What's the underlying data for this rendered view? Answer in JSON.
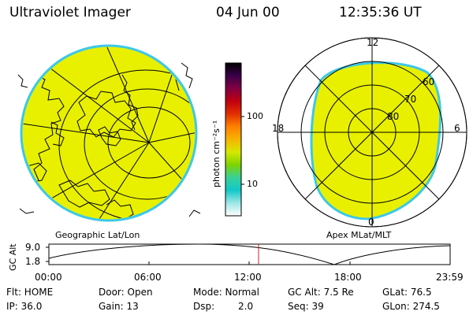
{
  "header": {
    "title": "Ultraviolet Imager",
    "date": "04 Jun 00",
    "time": "12:35:36 UT"
  },
  "geo_panel": {
    "label": "Geographic Lat/Lon",
    "fill_color": "#e8f000",
    "edge_color": "#3cc8e8"
  },
  "colorbar": {
    "unit_label": "photon cm⁻²s⁻¹",
    "tick_labels": [
      "100",
      "10"
    ],
    "stops": [
      "#ffffff",
      "#9ee6e6",
      "#12c8c8",
      "#38d098",
      "#7ed300",
      "#d6e800",
      "#f6b400",
      "#ff8000",
      "#e03000",
      "#c00010",
      "#800040",
      "#3a0048",
      "#000000"
    ],
    "scale": "log"
  },
  "polar_panel": {
    "label": "Apex MLat/MLT",
    "mlt_labels": {
      "top": "12",
      "right": "6",
      "bottom": "0",
      "left": "18"
    },
    "lat_labels": [
      "60",
      "70",
      "80"
    ],
    "fill_color": "#e8f000",
    "edge_color": "#3cc8e8"
  },
  "altitude_plot": {
    "ylabel": "GC Alt",
    "ytick_top": "9.0",
    "ytick_bottom": "1.8",
    "x_ticks": [
      "00:00",
      "06:00",
      "12:00",
      "18:00",
      "23:59"
    ],
    "marker_time": "12:35",
    "marker_color": "#d02020"
  },
  "status": {
    "flt": "Flt: HOME",
    "door": "Door: Open",
    "mode": "Mode: Normal",
    "gc_alt": "GC Alt: 7.5 Re",
    "glat": "GLat: 76.5",
    "ip": "IP: 36.0",
    "gain": "Gain: 13",
    "dsp_label": "Dsp:",
    "dsp_value": "2.0",
    "seq": "Seq: 39",
    "glon": "GLon: 274.5"
  }
}
